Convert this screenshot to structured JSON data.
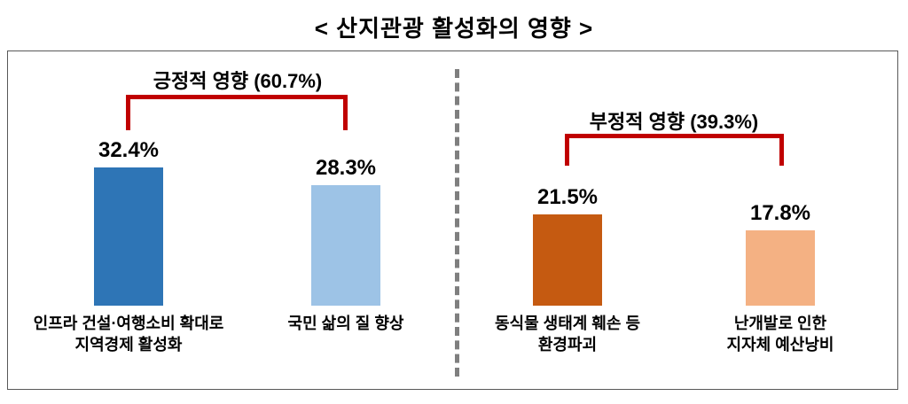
{
  "title": "< 산지관광 활성화의 영향 >",
  "colors": {
    "bracket": "#c00000",
    "divider": "#7f7f7f",
    "frame_border": "#595959"
  },
  "chart_data": {
    "type": "bar",
    "title": "< 산지관광 활성화의 영향 >",
    "value_unit": "%",
    "ylim": [
      0,
      35
    ],
    "grid": false,
    "legend": "none",
    "groups": [
      {
        "label": "긍정적 영향 (60.7%)",
        "total": 60.7,
        "bars": [
          {
            "category": "인프라 건설·여행소비 확대로\n지역경제 활성화",
            "value": 32.4,
            "label": "32.4%",
            "color": "#2e75b6"
          },
          {
            "category": "국민 삶의 질 향상",
            "value": 28.3,
            "label": "28.3%",
            "color": "#9dc3e6"
          }
        ]
      },
      {
        "label": "부정적 영향 (39.3%)",
        "total": 39.3,
        "bars": [
          {
            "category": "동식물 생태계 훼손 등\n환경파괴",
            "value": 21.5,
            "label": "21.5%",
            "color": "#c55a11"
          },
          {
            "category": "난개발로 인한\n지자체 예산낭비",
            "value": 17.8,
            "label": "17.8%",
            "color": "#f4b183"
          }
        ]
      }
    ]
  }
}
